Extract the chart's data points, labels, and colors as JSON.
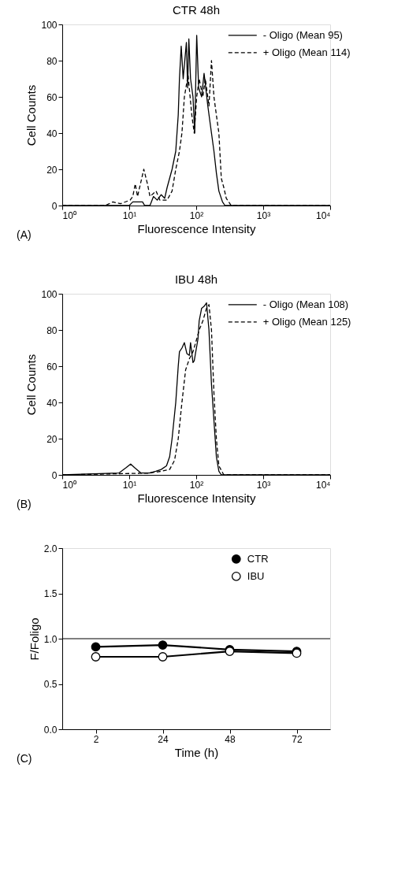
{
  "chart_data": [
    {
      "type": "line",
      "title": "CTR  48h",
      "xlabel": "Fluorescence Intensity",
      "ylabel": "Cell Counts",
      "log": "x",
      "xlim": [
        1,
        10000
      ],
      "ylim": [
        0,
        100
      ],
      "xticks": [
        {
          "value": 1,
          "label": "10⁰"
        },
        {
          "value": 10,
          "label": "10¹"
        },
        {
          "value": 100,
          "label": "10²"
        },
        {
          "value": 1000,
          "label": "10³"
        },
        {
          "value": 10000,
          "label": "10⁴"
        }
      ],
      "yticks": [
        0,
        20,
        40,
        60,
        80,
        100
      ],
      "grid": false,
      "legend": "top right",
      "marker": "none",
      "annotations": [
        "(A)"
      ],
      "series": [
        {
          "name": "-  Oligo (Mean 95)",
          "color": "#000000",
          "line_style": "solid",
          "x": [
            1,
            10,
            11.3,
            12.5,
            15.8,
            17,
            20.4,
            23,
            26.2,
            30,
            33.8,
            36.8,
            43.6,
            49.5,
            53.9,
            56.2,
            59.7,
            63.9,
            71.3,
            74.4,
            77.6,
            82.3,
            89.5,
            95,
            101.7,
            108.8,
            120.5,
            131,
            149,
            169,
            184,
            200,
            218,
            247,
            269,
            10000
          ],
          "values": [
            0,
            0,
            2,
            2,
            2,
            0,
            0,
            5,
            3,
            6,
            4,
            10,
            20,
            30,
            50,
            70,
            88,
            70,
            90,
            65,
            92,
            70,
            60,
            40,
            94,
            65,
            60,
            73,
            55,
            40,
            30,
            18,
            8,
            2,
            0,
            0
          ]
        },
        {
          "name": "+ Oligo (Mean 114)",
          "color": "#000000",
          "line_style": "dashed",
          "x": [
            1,
            4.4,
            5.7,
            7.4,
            10.3,
            11.3,
            12.3,
            13.3,
            16.5,
            18.7,
            20.4,
            25.2,
            28.6,
            36.8,
            43.6,
            49.5,
            56.2,
            61.2,
            66.6,
            75.6,
            85.9,
            93.4,
            101.7,
            110.7,
            125.6,
            136.8,
            155,
            169,
            184,
            200,
            218,
            237,
            258,
            281,
            333,
            10000
          ],
          "values": [
            0,
            0,
            2,
            1,
            3,
            5,
            12,
            5,
            20,
            12,
            5,
            8,
            3,
            3,
            8,
            20,
            30,
            40,
            60,
            72,
            50,
            40,
            60,
            70,
            60,
            70,
            55,
            80,
            60,
            50,
            40,
            15,
            10,
            4,
            0,
            0
          ]
        }
      ]
    },
    {
      "type": "line",
      "title": "IBU  48h",
      "xlabel": "Fluorescence Intensity",
      "ylabel": "Cell Counts",
      "log": "x",
      "xlim": [
        1,
        10000
      ],
      "ylim": [
        0,
        100
      ],
      "xticks": [
        {
          "value": 1,
          "label": "10⁰"
        },
        {
          "value": 10,
          "label": "10¹"
        },
        {
          "value": 100,
          "label": "10²"
        },
        {
          "value": 1000,
          "label": "10³"
        },
        {
          "value": 10000,
          "label": "10⁴"
        }
      ],
      "yticks": [
        0,
        20,
        40,
        60,
        80,
        100
      ],
      "grid": false,
      "legend": "top right",
      "marker": "none",
      "annotations": [
        "(B)"
      ],
      "series": [
        {
          "name": "-  Oligo (Mean 108)",
          "color": "#000000",
          "line_style": "solid",
          "x": [
            1,
            7,
            9,
            10.5,
            12,
            15,
            20,
            25,
            30,
            36,
            40.1,
            43.6,
            49.5,
            53.9,
            56.2,
            61.2,
            66.6,
            72.5,
            78.9,
            82.3,
            89.5,
            93.4,
            106.2,
            110.7,
            120.5,
            131,
            142.6,
            155,
            169,
            184,
            200,
            218,
            237,
            10000
          ],
          "values": [
            0,
            1,
            4,
            6,
            4,
            1,
            1,
            2,
            3,
            5,
            10,
            20,
            40,
            60,
            68,
            70,
            73,
            67,
            66,
            73,
            62,
            63,
            75,
            85,
            92,
            93,
            95,
            80,
            50,
            30,
            10,
            2,
            0,
            0
          ]
        },
        {
          "name": "+ Oligo (Mean 125)",
          "color": "#000000",
          "line_style": "dashed",
          "x": [
            1,
            20,
            30,
            40.1,
            47.5,
            53.9,
            61.2,
            69.5,
            78.9,
            89.5,
            101.7,
            110.7,
            125.6,
            142.6,
            155,
            169,
            184,
            200,
            218,
            258,
            10000
          ],
          "values": [
            0,
            1,
            2,
            3,
            8,
            20,
            40,
            58,
            64,
            68,
            75,
            80,
            85,
            92,
            94,
            80,
            45,
            20,
            5,
            0,
            0
          ]
        }
      ]
    },
    {
      "type": "line",
      "xlabel": "Time (h)",
      "ylabel": "F/Foligo",
      "categories": [
        "2",
        "24",
        "48",
        "72"
      ],
      "ylim": [
        0,
        2
      ],
      "yticks": [
        {
          "value": 0,
          "label": "0.0"
        },
        {
          "value": 0.5,
          "label": "0.5"
        },
        {
          "value": 1,
          "label": "1.0"
        },
        {
          "value": 1.5,
          "label": "1.5"
        },
        {
          "value": 2,
          "label": "2.0"
        }
      ],
      "grid": false,
      "legend": "top right",
      "marker": "circle",
      "line_style": "solid",
      "annotations": [
        "(C)"
      ],
      "ref_lines": [
        {
          "axis": "y",
          "value": 1,
          "color": "#000000"
        }
      ],
      "series": [
        {
          "name": "CTR",
          "color": "#000000",
          "values": [
            0.91,
            0.93,
            0.88,
            0.86
          ]
        },
        {
          "name": "IBU",
          "color": "#000000",
          "values": [
            0.8,
            0.8,
            0.86,
            0.84
          ]
        }
      ]
    }
  ]
}
